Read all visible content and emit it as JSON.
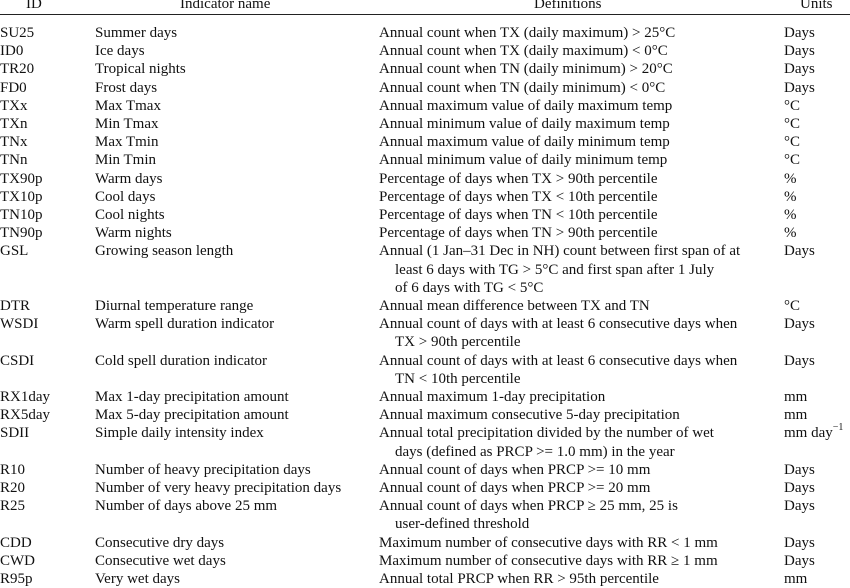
{
  "table": {
    "headers": {
      "id": "ID",
      "name": "Indicator name",
      "definition": "Definitions",
      "units": "Units"
    },
    "rows": [
      {
        "id": "SU25",
        "name": "Summer days",
        "definition": [
          "Annual count when TX (daily maximum) > 25°C"
        ],
        "units": "Days"
      },
      {
        "id": "ID0",
        "name": "Ice days",
        "definition": [
          "Annual count when TX (daily maximum) < 0°C"
        ],
        "units": "Days"
      },
      {
        "id": "TR20",
        "name": "Tropical nights",
        "definition": [
          "Annual count when TN (daily minimum) > 20°C"
        ],
        "units": "Days"
      },
      {
        "id": "FD0",
        "name": "Frost days",
        "definition": [
          "Annual count when TN (daily minimum) < 0°C"
        ],
        "units": "Days"
      },
      {
        "id": "TXx",
        "name": "Max Tmax",
        "definition": [
          "Annual maximum value of daily maximum temp"
        ],
        "units": "°C"
      },
      {
        "id": "TXn",
        "name": "Min Tmax",
        "definition": [
          "Annual minimum value of daily maximum temp"
        ],
        "units": "°C"
      },
      {
        "id": "TNx",
        "name": "Max Tmin",
        "definition": [
          "Annual maximum value of daily minimum temp"
        ],
        "units": "°C"
      },
      {
        "id": "TNn",
        "name": "Min Tmin",
        "definition": [
          "Annual minimum value of daily minimum temp"
        ],
        "units": "°C"
      },
      {
        "id": "TX90p",
        "name": "Warm days",
        "definition": [
          "Percentage of days when TX > 90th percentile"
        ],
        "units": "%"
      },
      {
        "id": "TX10p",
        "name": "Cool days",
        "definition": [
          "Percentage of days when TX < 10th percentile"
        ],
        "units": "%"
      },
      {
        "id": "TN10p",
        "name": "Cool nights",
        "definition": [
          "Percentage of days when TN < 10th percentile"
        ],
        "units": "%"
      },
      {
        "id": "TN90p",
        "name": "Warm nights",
        "definition": [
          "Percentage of days when TN > 90th percentile"
        ],
        "units": "%"
      },
      {
        "id": "GSL",
        "name": "Growing season length",
        "definition": [
          "Annual (1 Jan–31 Dec in NH) count between first span of at",
          "least 6 days with TG > 5°C and first span after 1 July",
          "of 6 days with TG < 5°C"
        ],
        "units": "Days"
      },
      {
        "id": "DTR",
        "name": "Diurnal temperature range",
        "definition": [
          "Annual mean difference between TX and TN"
        ],
        "units": "°C"
      },
      {
        "id": "WSDI",
        "name": "Warm spell duration indicator",
        "definition": [
          "Annual count of days with at least 6 consecutive days when",
          "TX > 90th percentile"
        ],
        "units": "Days"
      },
      {
        "id": "CSDI",
        "name": "Cold spell duration indicator",
        "definition": [
          "Annual count of days with at least 6 consecutive days when",
          "TN < 10th percentile"
        ],
        "units": "Days"
      },
      {
        "id": "RX1day",
        "name": "Max 1-day precipitation amount",
        "definition": [
          "Annual maximum 1-day precipitation"
        ],
        "units": "mm"
      },
      {
        "id": "RX5day",
        "name": "Max 5-day precipitation amount",
        "definition": [
          "Annual maximum consecutive 5-day precipitation"
        ],
        "units": "mm"
      },
      {
        "id": "SDII",
        "name": "Simple daily intensity index",
        "definition": [
          "Annual total precipitation divided by the number of wet",
          "days (defined as PRCP >= 1.0 mm) in the year"
        ],
        "units": "mm day",
        "units_sup": "−1"
      },
      {
        "id": "R10",
        "name": "Number of heavy precipitation days",
        "definition": [
          "Annual count of days when PRCP >= 10 mm"
        ],
        "units": "Days"
      },
      {
        "id": "R20",
        "name": "Number of very heavy precipitation days",
        "definition": [
          "Annual count of days when PRCP >= 20 mm"
        ],
        "units": "Days"
      },
      {
        "id": "R25",
        "name": "Number of days above 25 mm",
        "definition": [
          "Annual count of days when PRCP ≥ 25 mm, 25 is",
          "user-defined threshold"
        ],
        "units": "Days"
      },
      {
        "id": "CDD",
        "name": "Consecutive dry days",
        "definition": [
          "Maximum number of consecutive days with RR < 1 mm"
        ],
        "units": "Days"
      },
      {
        "id": "CWD",
        "name": "Consecutive wet days",
        "definition": [
          "Maximum number of consecutive days with RR ≥ 1 mm"
        ],
        "units": "Days"
      },
      {
        "id": "R95p",
        "name": "Very wet days",
        "definition": [
          "Annual total PRCP when RR > 95th percentile"
        ],
        "units": "mm"
      }
    ]
  }
}
